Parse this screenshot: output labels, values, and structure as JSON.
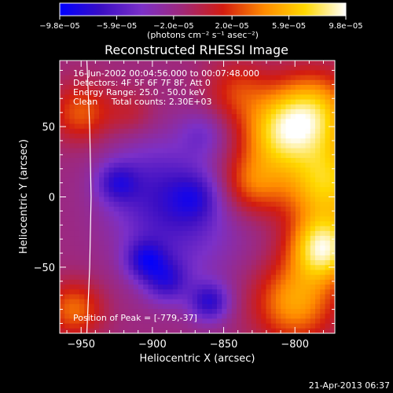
{
  "chart_data": {
    "type": "heatmap",
    "title": "Reconstructed RHESSI Image",
    "xlabel": "Heliocentric X (arcsec)",
    "ylabel": "Heliocentric Y (arcsec)",
    "xlim": [
      -965,
      -772
    ],
    "ylim": [
      -97,
      97
    ],
    "xticks": [
      -950,
      -900,
      -850,
      -800
    ],
    "yticks": [
      50,
      0,
      -50
    ],
    "xtick_labels": [
      "−950",
      "−900",
      "−850",
      "−800"
    ],
    "ytick_labels": [
      "50",
      "0",
      "−50"
    ],
    "colorbar": {
      "range": [
        -9.8e-05,
        9.8e-05
      ],
      "ticks": [
        -9.8e-05,
        -5.9e-05,
        -2e-05,
        2e-05,
        5.9e-05,
        9.8e-05
      ],
      "tick_labels": [
        "−9.8e−05",
        "−5.9e−05",
        "−2.0e−05",
        "2.0e−05",
        "5.9e−05",
        "9.8e−05"
      ],
      "units": "(photons cm⁻² s⁻¹ asec⁻²)",
      "colors": [
        "#0000ff",
        "#3a0ec4",
        "#7b30c8",
        "#a02878",
        "#d21c10",
        "#ff8a00",
        "#ffd800",
        "#ffffff"
      ]
    },
    "annotations": {
      "time": "16-Jun-2002 00:04:56.000 to 00:07:48.000",
      "detectors": "Detectors: 4F 5F 6F 7F 8F, Att 0",
      "energy": "Energy Range: 25.0 - 50.0 keV",
      "clean": "Clean     Total counts: 2.30E+03",
      "peak": "Position of Peak = [-779,-37]"
    },
    "peak": {
      "x": -779,
      "y": -37
    },
    "limb_curve": [
      [
        -946,
        97
      ],
      [
        -944,
        50
      ],
      [
        -943,
        0
      ],
      [
        -944,
        -50
      ],
      [
        -946,
        -97
      ]
    ],
    "hotspots": [
      {
        "x": -780,
        "y": -37,
        "amp": 9.8e-05,
        "s": 16
      },
      {
        "x": -778,
        "y": 10,
        "amp": 8.2e-05,
        "s": 22
      },
      {
        "x": -788,
        "y": 60,
        "amp": 8e-05,
        "s": 20
      },
      {
        "x": -812,
        "y": 45,
        "amp": 6.5e-05,
        "s": 18
      },
      {
        "x": -800,
        "y": -75,
        "amp": 6.5e-05,
        "s": 20
      },
      {
        "x": -830,
        "y": 10,
        "amp": 5e-05,
        "s": 16
      },
      {
        "x": -840,
        "y": 75,
        "amp": 3.5e-05,
        "s": 16
      },
      {
        "x": -950,
        "y": 60,
        "amp": 4.5e-05,
        "s": 15
      },
      {
        "x": -955,
        "y": -80,
        "amp": 5e-05,
        "s": 14
      },
      {
        "x": -915,
        "y": 60,
        "amp": 2e-05,
        "s": 12
      },
      {
        "x": -880,
        "y": -20,
        "amp": -3.5e-05,
        "s": 30
      },
      {
        "x": -900,
        "y": 10,
        "amp": -3e-05,
        "s": 25
      },
      {
        "x": -905,
        "y": -45,
        "amp": -5e-05,
        "s": 10
      },
      {
        "x": -860,
        "y": -75,
        "amp": -5.5e-05,
        "s": 10
      },
      {
        "x": -925,
        "y": 10,
        "amp": -4e-05,
        "s": 10
      },
      {
        "x": -890,
        "y": -60,
        "amp": -4.5e-05,
        "s": 11
      },
      {
        "x": -870,
        "y": 0,
        "amp": -3e-05,
        "s": 12
      },
      {
        "x": -865,
        "y": 45,
        "amp": -2.5e-05,
        "s": 12
      }
    ]
  },
  "footer": {
    "timestamp": "21-Apr-2013 06:37"
  }
}
